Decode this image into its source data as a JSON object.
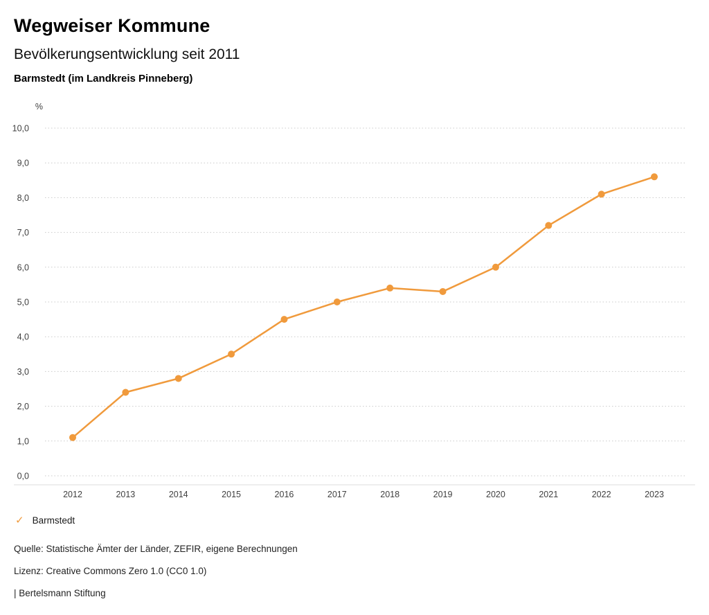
{
  "header": {
    "brand": "Wegweiser Kommune",
    "title": "Bevölkerungsentwicklung seit 2011",
    "subtitle": "Barmstedt (im Landkreis Pinneberg)"
  },
  "chart_data": {
    "type": "line",
    "title": "Bevölkerungsentwicklung seit 2011",
    "unit_label": "%",
    "categories": [
      "2012",
      "2013",
      "2014",
      "2015",
      "2016",
      "2017",
      "2018",
      "2019",
      "2020",
      "2021",
      "2022",
      "2023"
    ],
    "series": [
      {
        "name": "Barmstedt",
        "color": "#F09A3C",
        "values": [
          1.1,
          2.4,
          2.8,
          3.5,
          4.5,
          5.0,
          5.4,
          5.3,
          6.0,
          7.2,
          8.1,
          8.6
        ]
      }
    ],
    "ylim": [
      0,
      10
    ],
    "ytick_step": 1,
    "ytick_labels": [
      "0,0",
      "1,0",
      "2,0",
      "3,0",
      "4,0",
      "5,0",
      "6,0",
      "7,0",
      "8,0",
      "9,0",
      "10,0"
    ],
    "grid": "dotted-horizontal",
    "legend_position": "bottom-left"
  },
  "legend": {
    "items": [
      {
        "label": "Barmstedt",
        "color": "#F09A3C",
        "check_glyph": "✓"
      }
    ]
  },
  "footer": {
    "source": "Quelle: Statistische Ämter der Länder, ZEFIR, eigene Berechnungen",
    "license": "Lizenz: Creative Commons Zero 1.0 (CC0 1.0)",
    "attribution": "| Bertelsmann Stiftung"
  },
  "colors": {
    "accent": "#F09A3C",
    "gridline": "#c9c9c9",
    "axis": "#dddddd",
    "tick_text": "#404040"
  }
}
